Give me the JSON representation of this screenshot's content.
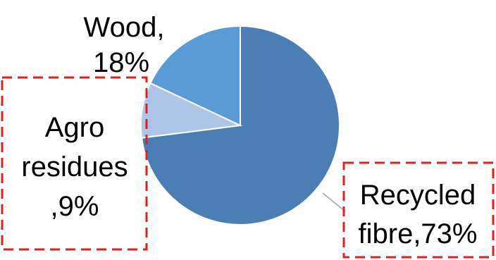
{
  "chart_data": {
    "type": "pie",
    "slices": [
      {
        "label_line1": "Recycled",
        "label_line2": "fibre,73%",
        "value": 73,
        "color": "#4a7eb4"
      },
      {
        "label_line1": "Agro",
        "label_line2": "residues",
        "label_line3": ",9%",
        "value": 9,
        "color": "#adc5e7"
      },
      {
        "label_line1": "Wood,",
        "label_line2": "18%",
        "value": 18,
        "color": "#5b9bd5"
      }
    ],
    "highlight_color": "#e0201c"
  }
}
